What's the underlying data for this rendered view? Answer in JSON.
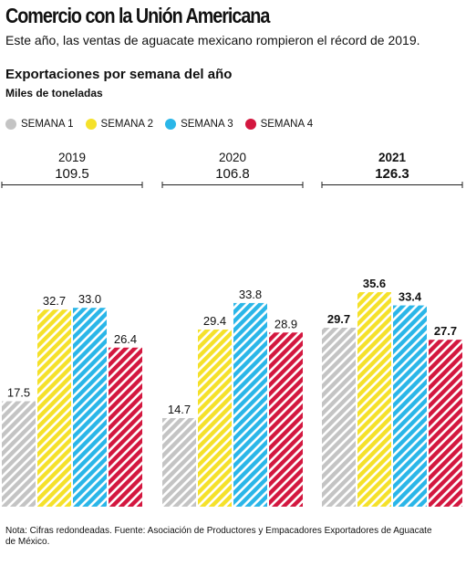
{
  "header": {
    "title": "Comercio con la Unión Americana",
    "subtitle": "Este año, las ventas de aguacate mexicano rompieron el récord de 2019."
  },
  "section": {
    "title": "Exportaciones por semana del año",
    "units": "Miles de toneladas"
  },
  "note": "Nota: Cifras redondeadas. Fuente: Asociación de Productores y Empacadores Exportadores de Aguacate de México.",
  "chart_data": {
    "type": "bar",
    "categories": [
      "2019",
      "2020",
      "2021"
    ],
    "totals": [
      "109.5",
      "106.8",
      "126.3"
    ],
    "highlight_category": "2021",
    "series": [
      {
        "name": "SEMANA 1",
        "color": "#c4c4c4",
        "values": [
          17.5,
          14.7,
          29.7
        ]
      },
      {
        "name": "SEMANA 2",
        "color": "#f5e12a",
        "values": [
          32.7,
          29.4,
          35.6
        ]
      },
      {
        "name": "SEMANA 3",
        "color": "#2ab6e8",
        "values": [
          33.0,
          33.8,
          33.4
        ]
      },
      {
        "name": "SEMANA 4",
        "color": "#d3173f",
        "values": [
          26.4,
          28.9,
          27.7
        ]
      }
    ],
    "value_labels": [
      [
        "17.5",
        "32.7",
        "33.0",
        "26.4"
      ],
      [
        "14.7",
        "29.4",
        "33.8",
        "28.9"
      ],
      [
        "29.7",
        "35.6",
        "33.4",
        "27.7"
      ]
    ],
    "ylim": [
      0,
      44
    ],
    "legend_position": "top-left",
    "grid": false
  }
}
